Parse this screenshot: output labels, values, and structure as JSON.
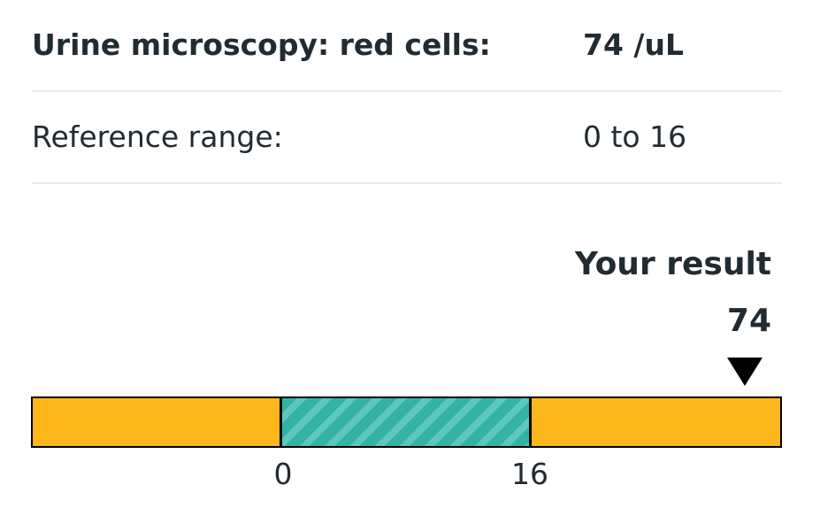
{
  "test": {
    "label": "Urine microscopy: red cells:",
    "value": "74 /uL"
  },
  "reference": {
    "label": "Reference range:",
    "value": "0 to 16"
  },
  "result": {
    "title": "Your result",
    "value": "74",
    "bar_position_fraction": 0.95
  },
  "range_bar": {
    "lower_limit": "0",
    "upper_limit": "16",
    "colors": {
      "out_of_range": "#FDB71A",
      "in_range": "#34B3A5",
      "in_range_stripe": "#5DC7BB",
      "border": "#000000"
    }
  }
}
